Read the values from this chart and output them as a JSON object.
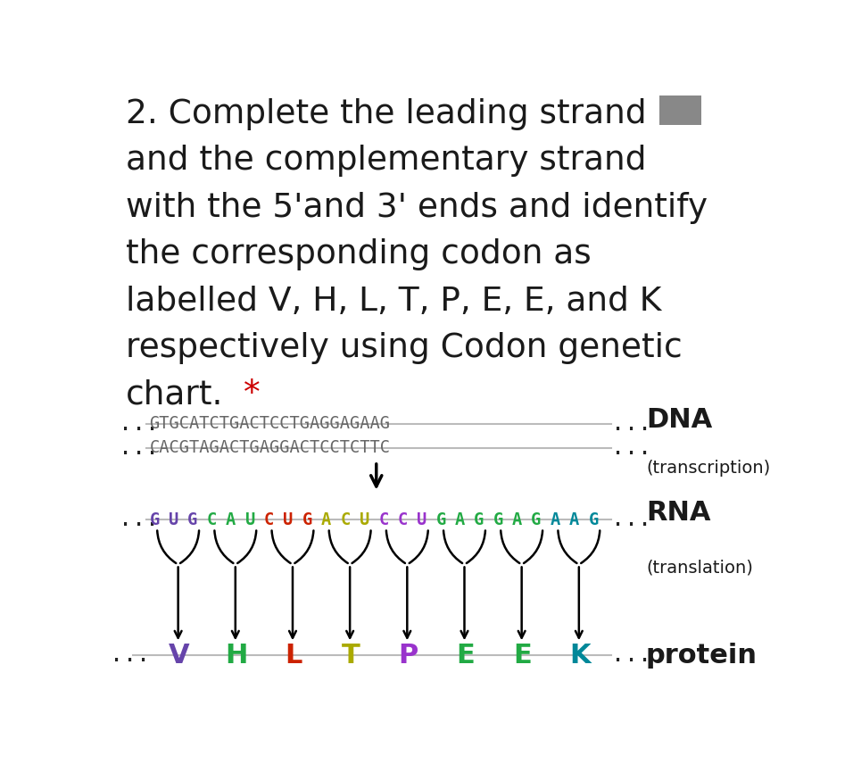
{
  "title_lines": [
    "2. Complete the leading strand",
    "and the complementary strand",
    "with the 5'and 3' ends and identify",
    "the corresponding codon as",
    "labelled V, H, L, T, P, E, E, and K",
    "respectively using Codon genetic",
    "chart."
  ],
  "dna_strand1": "GTGCATCTGACTCCTGAGGAGAAG",
  "dna_strand2": "CACGTAGACTGAGGACTCCTCTTC",
  "rna_sequence": "GUGCAUCUGACUCCUGAGGAGAAG",
  "rna_colors": [
    "#6644AA",
    "#6644AA",
    "#6644AA",
    "#22AA44",
    "#22AA44",
    "#22AA44",
    "#CC2200",
    "#CC2200",
    "#CC2200",
    "#AAAA00",
    "#AAAA00",
    "#AAAA00",
    "#9933CC",
    "#9933CC",
    "#9933CC",
    "#22AA44",
    "#22AA44",
    "#22AA44",
    "#22AA44",
    "#22AA44",
    "#22AA44",
    "#008899",
    "#008899",
    "#008899"
  ],
  "protein_letters": [
    "V",
    "H",
    "L",
    "T",
    "P",
    "E",
    "E",
    "K"
  ],
  "protein_colors": [
    "#6644AA",
    "#22AA44",
    "#CC2200",
    "#AAAA00",
    "#9933CC",
    "#22AA44",
    "#22AA44",
    "#008899"
  ],
  "dna_label": "DNA",
  "transcription_label": "(transcription)",
  "rna_label": "RNA",
  "translation_label": "(translation)",
  "protein_label": "protein",
  "bg_color": "#ffffff",
  "text_color": "#1a1a1a",
  "gray_rect_color": "#888888",
  "dots_color": "#222222",
  "strand_line_color": "#bbbbbb",
  "asterisk_color": "#cc0000",
  "dna_text_color": "#666666"
}
